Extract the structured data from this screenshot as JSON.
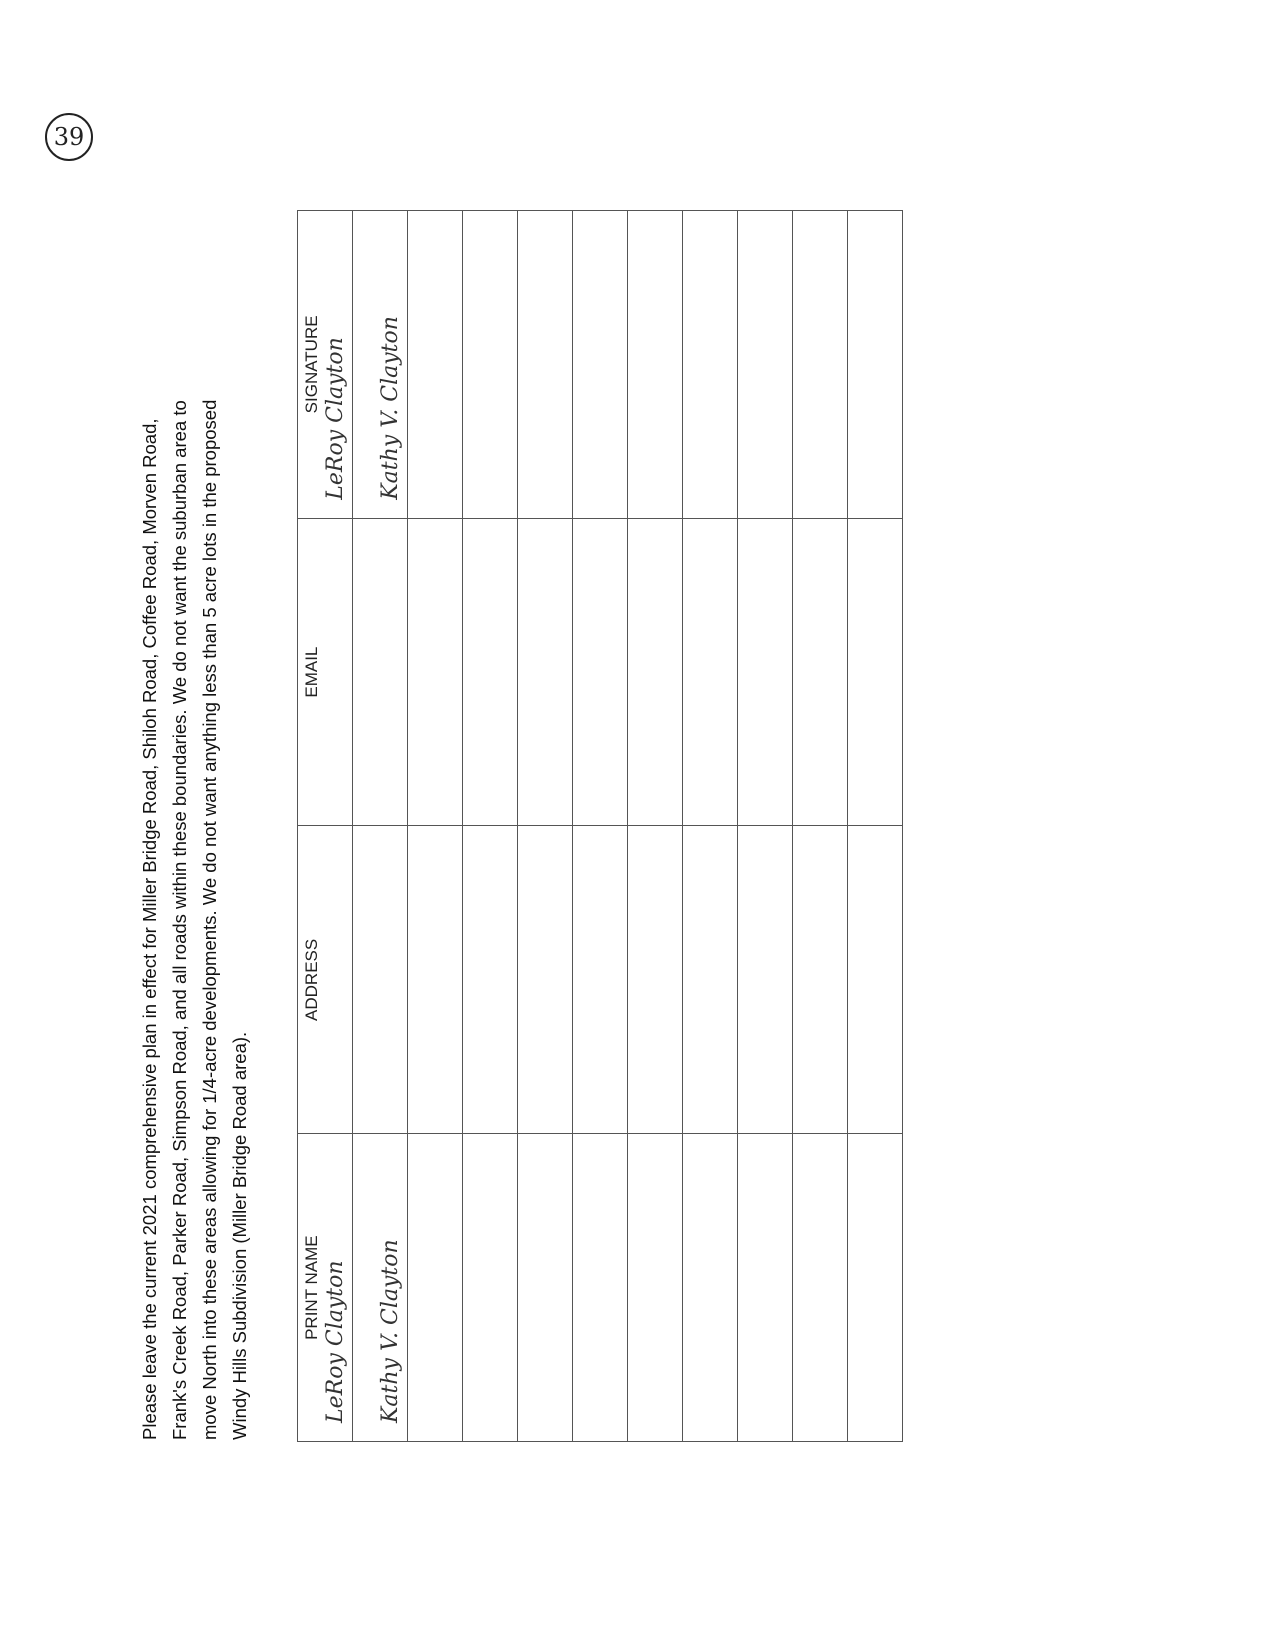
{
  "page_number": "39",
  "paragraph": [
    "Please leave the current 2021 comprehensive plan in effect for Miller Bridge Road, Shiloh Road, Coffee Road, Morven Road,",
    "Frank's Creek Road, Parker Road, Simpson Road, and all roads within these boundaries.  We do not want the suburban area to",
    "move North into these areas allowing for 1/4-acre developments. We do not want anything less than 5 acre lots in the proposed",
    "Windy Hills Subdivision (Miller Bridge Road area)."
  ],
  "table": {
    "headers": [
      "PRINT NAME",
      "ADDRESS",
      "EMAIL",
      "SIGNATURE"
    ],
    "rows": [
      {
        "name": "LeRoy Clayton",
        "address": "",
        "email": "",
        "signature": "LeRoy Clayton"
      },
      {
        "name": "Kathy V. Clayton",
        "address": "",
        "email": "",
        "signature": "Kathy V. Clayton"
      },
      {
        "name": "",
        "address": "",
        "email": "",
        "signature": ""
      },
      {
        "name": "",
        "address": "",
        "email": "",
        "signature": ""
      },
      {
        "name": "",
        "address": "",
        "email": "",
        "signature": ""
      },
      {
        "name": "",
        "address": "",
        "email": "",
        "signature": ""
      },
      {
        "name": "",
        "address": "",
        "email": "",
        "signature": ""
      },
      {
        "name": "",
        "address": "",
        "email": "",
        "signature": ""
      },
      {
        "name": "",
        "address": "",
        "email": "",
        "signature": ""
      },
      {
        "name": "",
        "address": "",
        "email": "",
        "signature": ""
      },
      {
        "name": "",
        "address": "",
        "email": "",
        "signature": ""
      }
    ]
  }
}
